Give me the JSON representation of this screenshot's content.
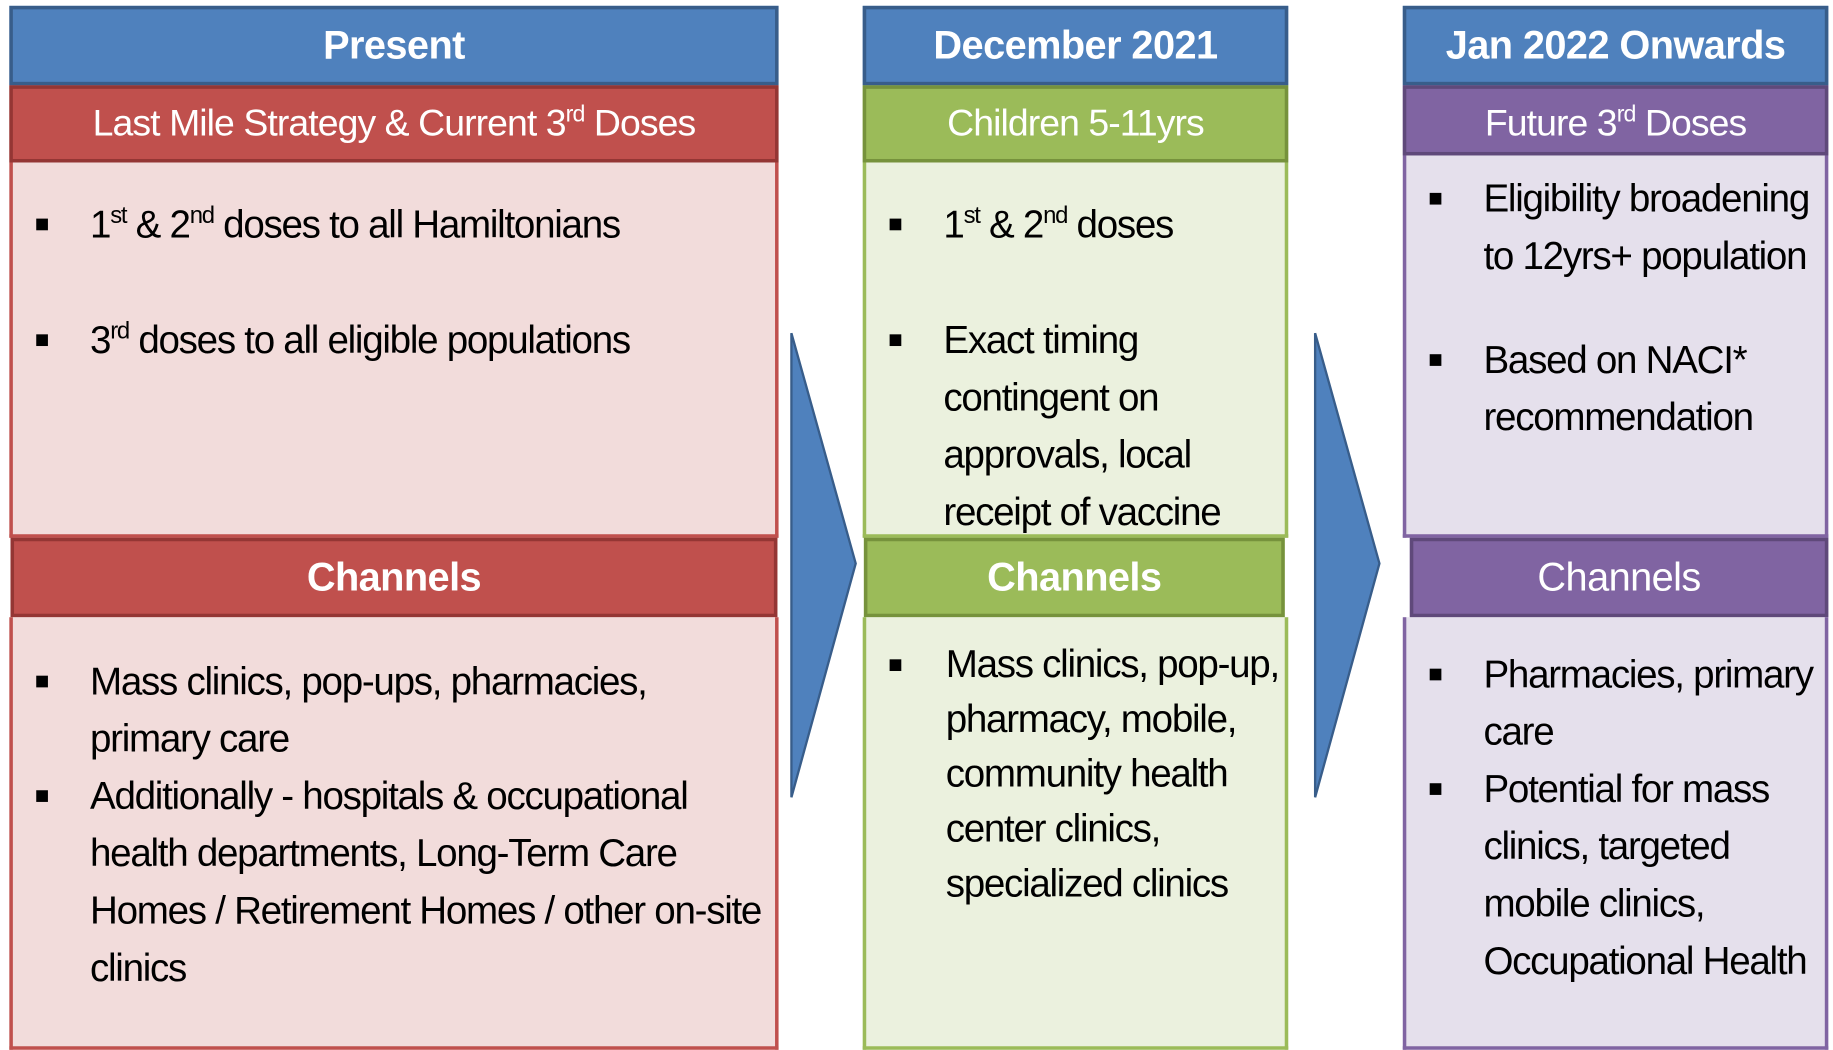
{
  "columns": [
    {
      "header": "Present",
      "subheader": [
        {
          "text": "Last Mile Strategy & Current 3"
        },
        {
          "sup": "rd"
        },
        {
          "text": " Doses"
        }
      ],
      "items": [
        [
          {
            "text": "1"
          },
          {
            "sup": "st"
          },
          {
            "text": " & 2"
          },
          {
            "sup": "nd"
          },
          {
            "text": " doses to all Hamiltonians"
          }
        ],
        [
          {
            "text": "3"
          },
          {
            "sup": "rd"
          },
          {
            "text": " doses to all eligible populations"
          }
        ]
      ],
      "channels_header": "Channels",
      "channels": [
        [
          {
            "text": "Mass clinics, pop-ups, pharmacies, primary care"
          }
        ],
        [
          {
            "text": "Additionally - hospitals & occupational health departments, Long-Term Care Homes / Retirement Homes / other on-site clinics"
          }
        ]
      ]
    },
    {
      "header": "December 2021",
      "subheader": [
        {
          "text": "Children 5-11yrs"
        }
      ],
      "items": [
        [
          {
            "text": "1"
          },
          {
            "sup": "st"
          },
          {
            "text": " & 2"
          },
          {
            "sup": "nd"
          },
          {
            "text": " doses"
          }
        ],
        [
          {
            "text": "Exact timing contingent on approvals, local receipt of vaccine"
          }
        ]
      ],
      "channels_header": "Channels",
      "channels": [
        [
          {
            "text": "Mass clinics, pop-up, pharmacy, mobile, community health center clinics, specialized clinics"
          }
        ]
      ]
    },
    {
      "header": "Jan 2022 Onwards",
      "subheader": [
        {
          "text": "Future 3"
        },
        {
          "sup": "rd"
        },
        {
          "text": " Doses"
        }
      ],
      "items": [
        [
          {
            "text": "Eligibility broadening to 12yrs+ population"
          }
        ],
        [
          {
            "text": "Based on NACI* recommendation"
          }
        ]
      ],
      "channels_header": "Channels",
      "channels": [
        [
          {
            "text": "Pharmacies, primary care"
          }
        ],
        [
          {
            "text": "Potential for mass clinics, targeted mobile clinics, Occupational Health"
          }
        ]
      ]
    }
  ]
}
